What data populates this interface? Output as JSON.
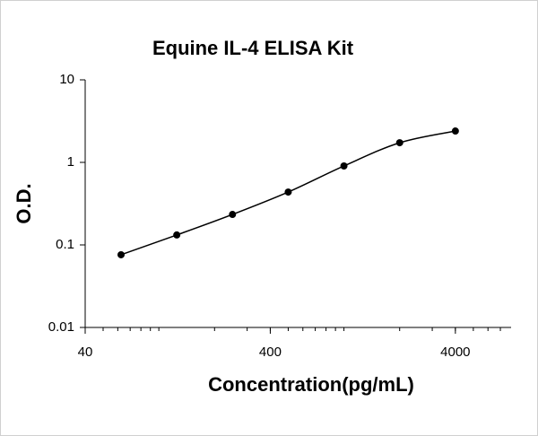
{
  "chart_data": {
    "type": "line",
    "title": "Equine IL-4 ELISA Kit",
    "x_label": "Concentration(pg/mL)",
    "y_label": "O.D.",
    "x": [
      62.5,
      125,
      250,
      500,
      1000,
      2000,
      4000
    ],
    "series": [
      {
        "color": "#000000",
        "values": [
          0.076,
          0.132,
          0.234,
          0.437,
          0.905,
          1.73,
          2.4
        ]
      }
    ],
    "xlim": [
      40,
      8000
    ],
    "ylim": [
      0.01,
      10
    ],
    "xticks": [
      40,
      400,
      4000
    ],
    "yticks": [
      0.01,
      0.1,
      1,
      10
    ],
    "xscale": "log",
    "yscale": "log",
    "grid": false,
    "markers": true,
    "smooth": true
  }
}
